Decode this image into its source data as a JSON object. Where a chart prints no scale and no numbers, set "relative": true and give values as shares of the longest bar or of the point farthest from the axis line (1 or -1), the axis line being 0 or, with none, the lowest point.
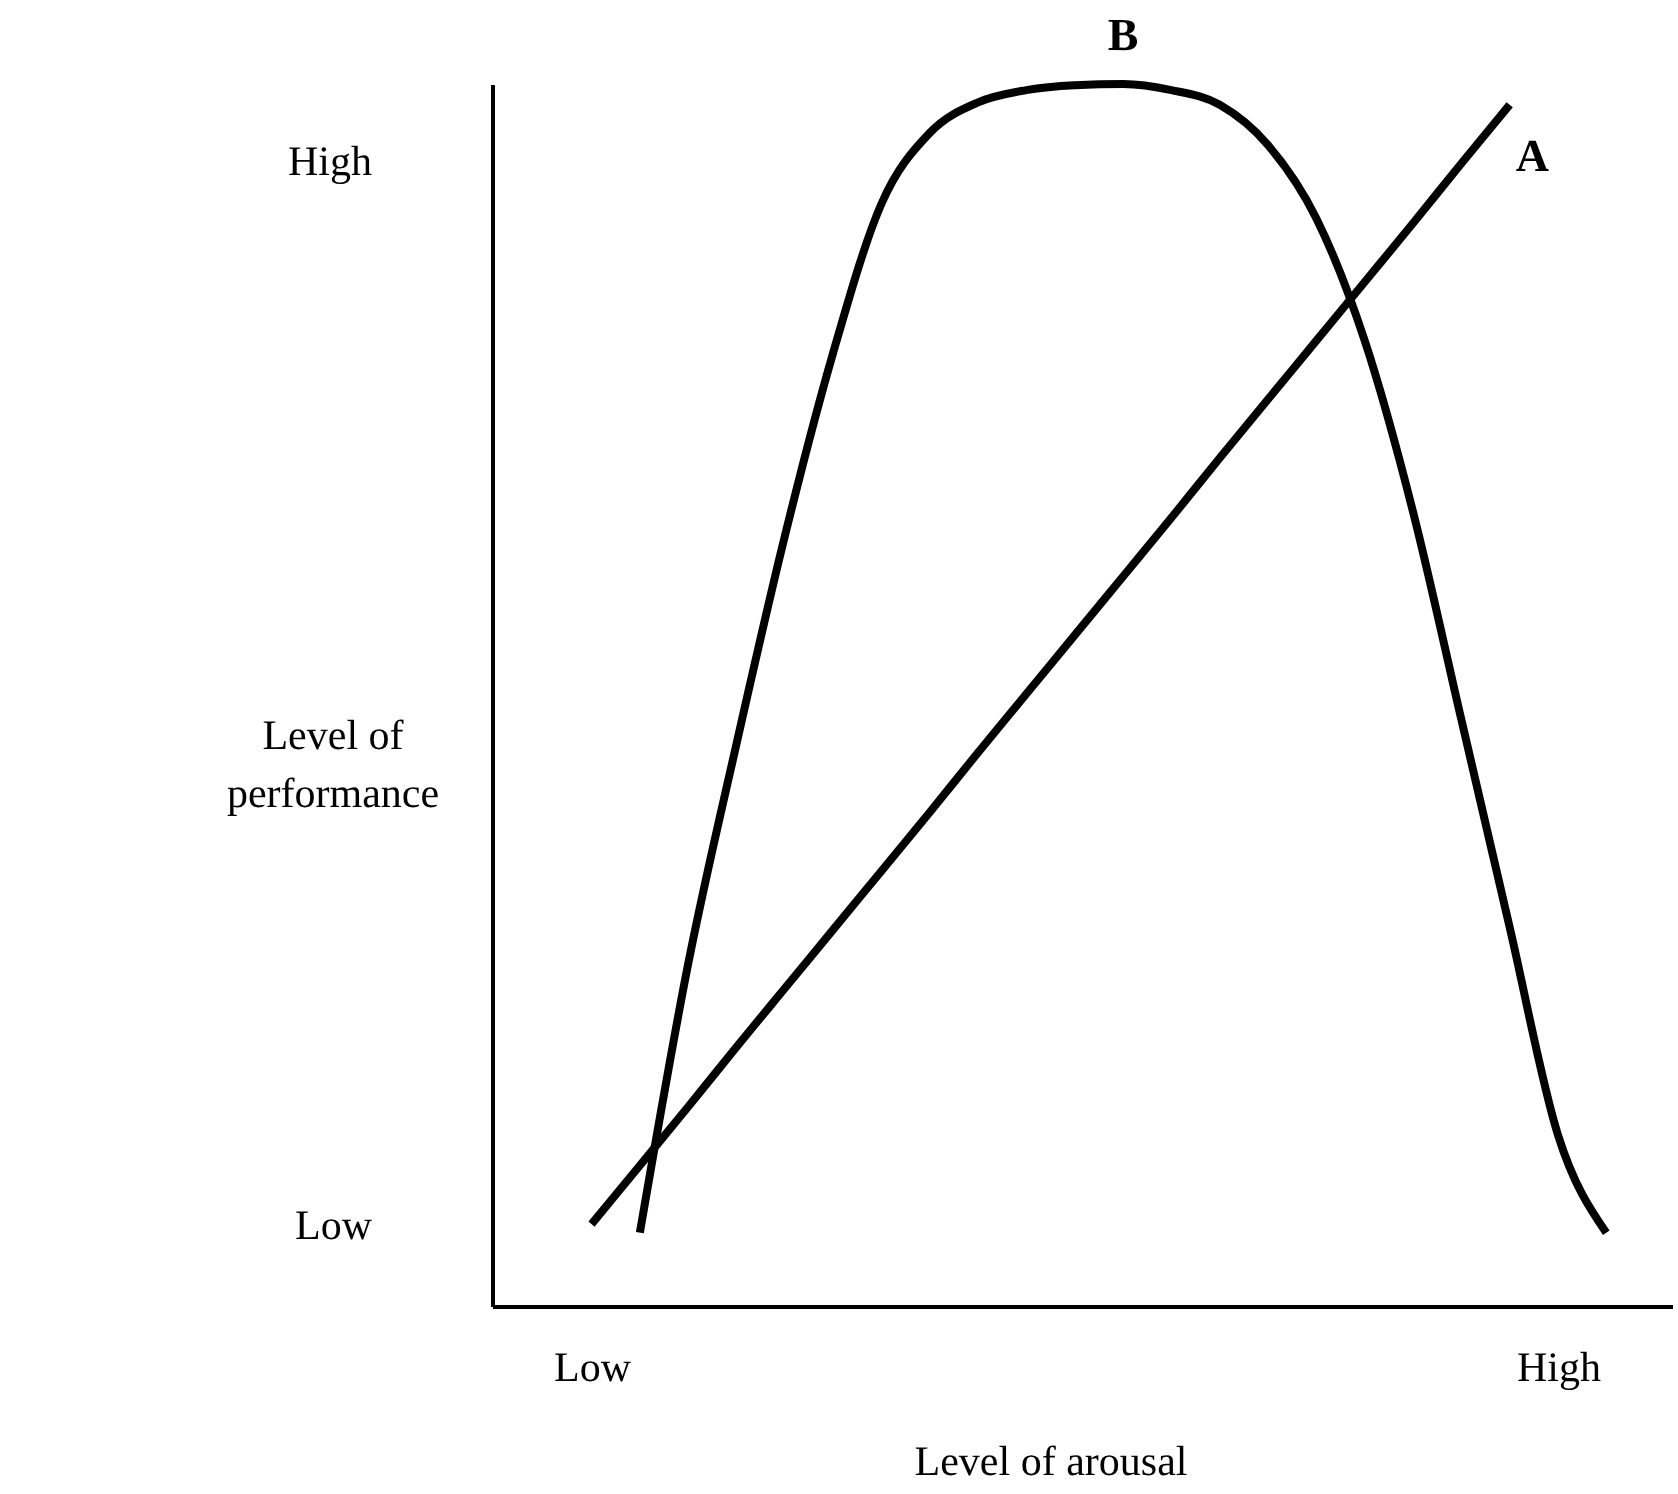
{
  "chart_data": {
    "type": "line",
    "xlabel": "Level of arousal",
    "ylabel": "Level of performance",
    "relative": true,
    "categories": [
      "Low",
      null,
      null,
      null,
      null,
      null,
      null,
      null,
      null,
      null,
      null,
      null,
      null,
      null,
      null,
      null,
      null,
      null,
      null,
      null,
      "High",
      null
    ],
    "annotations": [
      "High",
      "Low"
    ],
    "series": [
      {
        "name": "A",
        "color": "#000000",
        "values": [
          0.067,
          0.115,
          0.163,
          0.212,
          0.26,
          0.308,
          0.356,
          0.404,
          0.453,
          0.501,
          0.549,
          0.597,
          0.645,
          0.694,
          0.742,
          0.79,
          0.838,
          0.886,
          0.935,
          0.983,
          null,
          null
        ]
      },
      {
        "name": "B",
        "color": "#000000",
        "values": [
          null,
          0.06,
          0.28,
          0.46,
          0.63,
          0.78,
          0.902,
          0.96,
          0.985,
          0.995,
          0.999,
          1.0,
          0.995,
          0.983,
          0.95,
          0.89,
          0.79,
          0.65,
          0.48,
          0.31,
          0.14,
          0.06
        ]
      }
    ]
  }
}
